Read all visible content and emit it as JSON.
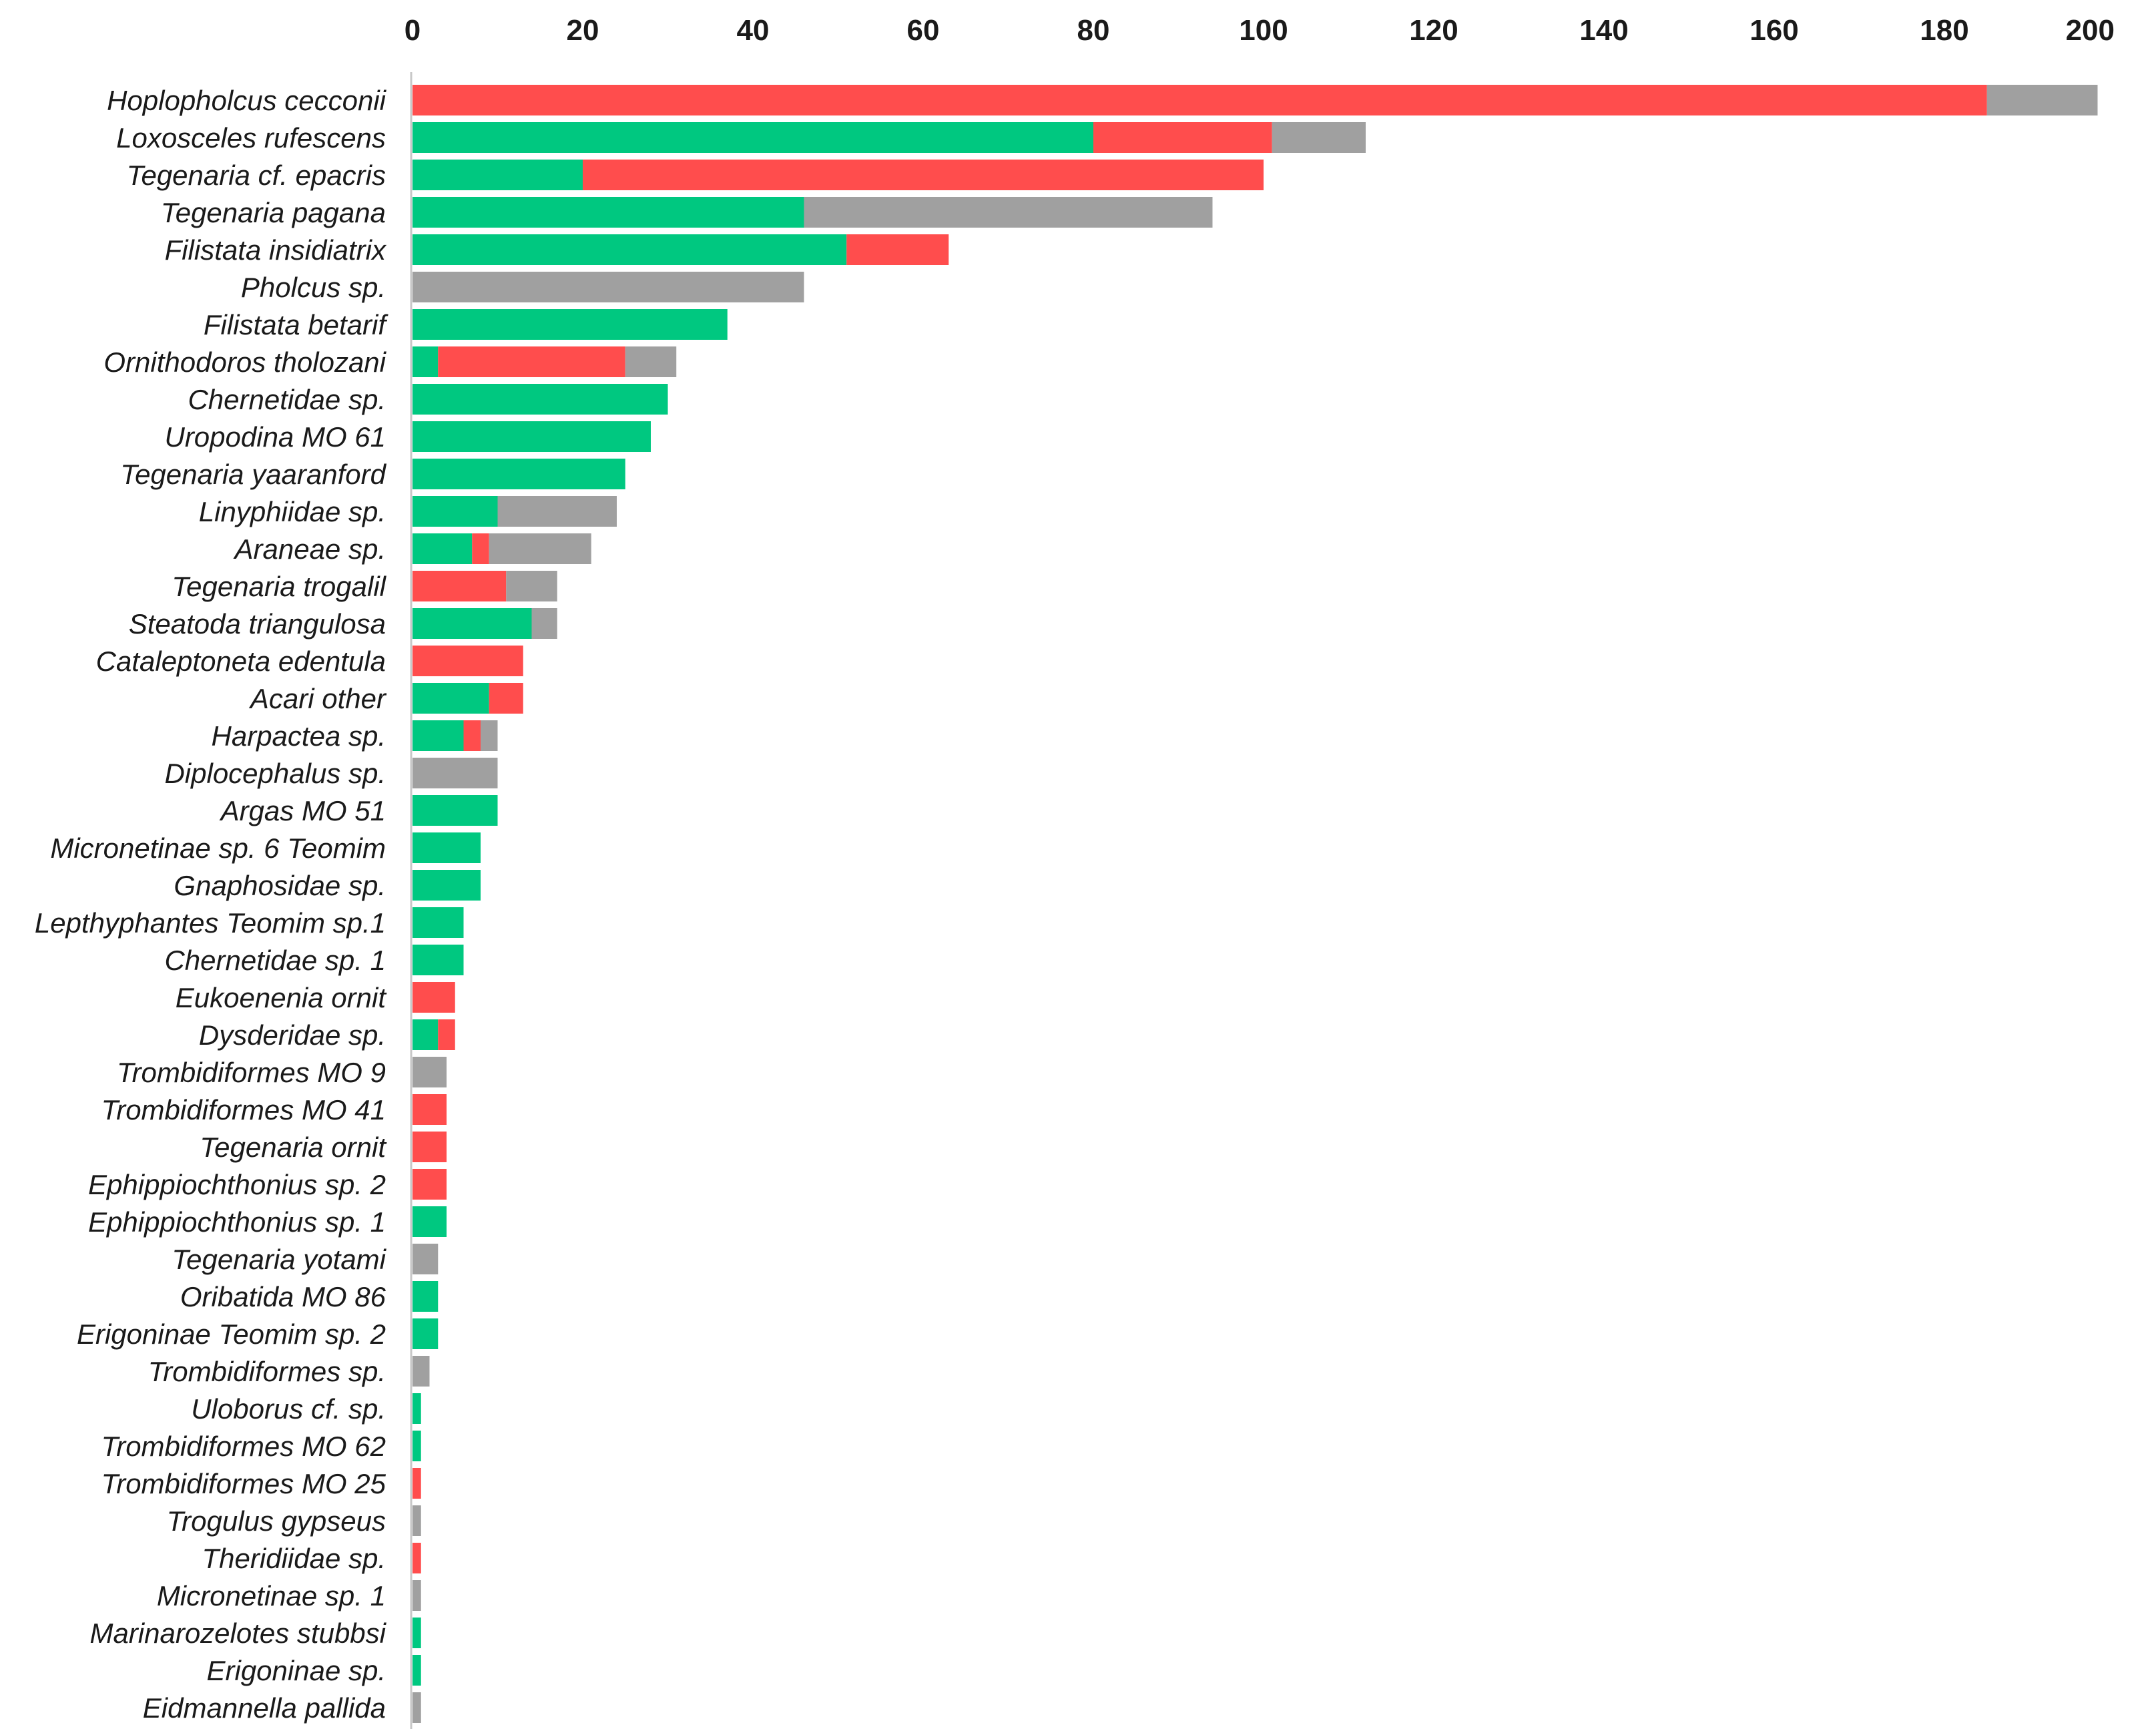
{
  "chart_data": {
    "type": "bar",
    "orientation": "horizontal",
    "stacked": true,
    "title": "",
    "xlabel": "",
    "ylabel": "",
    "xlim": [
      0,
      200
    ],
    "x_ticks": [
      "0",
      "20",
      "40",
      "60",
      "80",
      "100",
      "120",
      "140",
      "160",
      "180",
      "200"
    ],
    "x_axis_position": "top",
    "grid": false,
    "legend": "none",
    "colors": {
      "green": "#00c880",
      "red": "#ff4d4d",
      "gray": "#a0a0a0"
    },
    "categories": [
      "Hoplopholcus cecconii",
      "Loxosceles rufescens",
      "Tegenaria cf. epacris",
      "Tegenaria pagana",
      "Filistata insidiatrix",
      "Pholcus sp.",
      "Filistata betarif",
      "Ornithodoros tholozani",
      "Chernetidae sp.",
      "Uropodina MO 61",
      "Tegenaria yaaranford",
      "Linyphiidae sp.",
      "Araneae sp.",
      "Tegenaria trogalil",
      "Steatoda triangulosa",
      "Cataleptoneta edentula",
      "Acari other",
      "Harpactea sp.",
      "Diplocephalus sp.",
      "Argas MO 51",
      "Micronetinae sp. 6 Teomim",
      "Gnaphosidae sp.",
      "Lepthyphantes Teomim sp.1",
      "Chernetidae sp. 1",
      "Eukoenenia ornit",
      "Dysderidae sp.",
      "Trombidiformes MO 9",
      "Trombidiformes MO 41",
      "Tegenaria ornit",
      "Ephippiochthonius sp. 2",
      "Ephippiochthonius sp. 1",
      "Tegenaria yotami",
      "Oribatida MO 86",
      "Erigoninae Teomim sp. 2",
      "Trombidiformes sp.",
      "Uloborus cf. sp.",
      "Trombidiformes MO 62",
      "Trombidiformes MO 25",
      "Trogulus gypseus",
      "Theridiidae sp.",
      "Micronetinae sp. 1",
      "Marinarozelotes stubbsi",
      "Erigoninae sp.",
      "Eidmannella pallida"
    ],
    "series": [
      {
        "color": "green",
        "values": [
          0,
          80,
          20,
          46,
          51,
          0,
          37,
          3,
          30,
          28,
          25,
          10,
          7,
          0,
          14,
          0,
          9,
          6,
          0,
          10,
          8,
          8,
          6,
          6,
          0,
          3,
          0,
          0,
          0,
          0,
          4,
          0,
          3,
          3,
          0,
          1,
          1,
          0,
          0,
          0,
          0,
          1,
          1,
          0
        ]
      },
      {
        "color": "red",
        "values": [
          185,
          21,
          80,
          0,
          12,
          0,
          0,
          22,
          0,
          0,
          0,
          0,
          2,
          11,
          0,
          13,
          4,
          2,
          0,
          0,
          0,
          0,
          0,
          0,
          5,
          2,
          0,
          4,
          4,
          4,
          0,
          0,
          0,
          0,
          0,
          0,
          0,
          1,
          0,
          1,
          0,
          0,
          0,
          0
        ]
      },
      {
        "color": "gray",
        "values": [
          13,
          11,
          0,
          48,
          0,
          46,
          0,
          6,
          0,
          0,
          0,
          14,
          12,
          6,
          3,
          0,
          0,
          2,
          10,
          0,
          0,
          0,
          0,
          0,
          0,
          0,
          4,
          0,
          0,
          0,
          0,
          3,
          0,
          0,
          2,
          0,
          0,
          0,
          1,
          0,
          1,
          0,
          0,
          1
        ]
      }
    ]
  }
}
